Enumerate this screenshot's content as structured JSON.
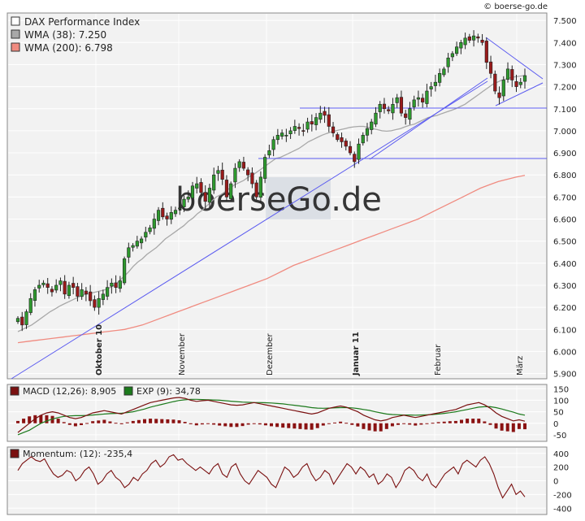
{
  "source": "© boerse-go.de",
  "watermark": "boerseGo.de",
  "colors": {
    "panel_bg": "#f2f2f2",
    "grid": "#ffffff",
    "candle_up": "#2e9a2e",
    "candle_down": "#9a1a1a",
    "wma38": "#a8a8a8",
    "wma200": "#f08b80",
    "trendline": "#5a5af0",
    "macd": "#7a1010",
    "signal": "#1c7a1c",
    "histogram": "#8a1212",
    "momentum": "#7a1010"
  },
  "chart_data": [
    {
      "type": "candlestick",
      "legend": [
        {
          "label": "DAX Performance Index",
          "swatch": "#ffffff"
        },
        {
          "label": "WMA (38): 7.250",
          "swatch": "#a8a8a8"
        },
        {
          "label": "WMA (200): 6.798",
          "swatch": "#f08b80"
        }
      ],
      "x_labels": [
        "Oktober 10",
        "November",
        "Dezember",
        "Januar 11",
        "Februar",
        "März"
      ],
      "y_ticks": [
        "5.900",
        "6.000",
        "6.100",
        "6.200",
        "6.300",
        "6.400",
        "6.500",
        "6.600",
        "6.700",
        "6.800",
        "6.900",
        "7.000",
        "7.100",
        "7.200",
        "7.300",
        "7.400",
        "7.500"
      ],
      "ylim": [
        5880,
        7530
      ],
      "grid": true,
      "closes": [
        6150,
        6120,
        6180,
        6240,
        6280,
        6300,
        6310,
        6290,
        6270,
        6300,
        6320,
        6260,
        6300,
        6290,
        6250,
        6280,
        6260,
        6230,
        6200,
        6240,
        6260,
        6290,
        6310,
        6290,
        6320,
        6420,
        6470,
        6480,
        6500,
        6510,
        6540,
        6560,
        6600,
        6640,
        6610,
        6600,
        6630,
        6640,
        6650,
        6690,
        6700,
        6750,
        6760,
        6720,
        6680,
        6740,
        6800,
        6820,
        6780,
        6700,
        6760,
        6830,
        6860,
        6830,
        6800,
        6760,
        6700,
        6790,
        6880,
        6910,
        6960,
        6980,
        6990,
        6980,
        7000,
        7020,
        7010,
        7000,
        7040,
        7030,
        7060,
        7080,
        7070,
        7020,
        6990,
        6960,
        6950,
        6930,
        6900,
        6860,
        6940,
        6980,
        7010,
        7040,
        7080,
        7120,
        7100,
        7090,
        7120,
        7150,
        7080,
        7060,
        7100,
        7140,
        7150,
        7130,
        7180,
        7200,
        7220,
        7260,
        7280,
        7330,
        7350,
        7380,
        7400,
        7420,
        7410,
        7430,
        7420,
        7400,
        7310,
        7260,
        7180,
        7150,
        7230,
        7280,
        7230,
        7200,
        7220,
        7250
      ],
      "wma38": [
        6090,
        6100,
        6110,
        6120,
        6135,
        6150,
        6165,
        6180,
        6192,
        6205,
        6215,
        6225,
        6235,
        6245,
        6255,
        6260,
        6265,
        6270,
        6275,
        6280,
        6290,
        6300,
        6320,
        6340,
        6360,
        6385,
        6405,
        6420,
        6440,
        6455,
        6470,
        6490,
        6510,
        6525,
        6540,
        6555,
        6570,
        6590,
        6605,
        6625,
        6640,
        6660,
        6680,
        6700,
        6710,
        6725,
        6740,
        6755,
        6765,
        6775,
        6790,
        6800,
        6815,
        6830,
        6845,
        6860,
        6875,
        6880,
        6890,
        6900,
        6910,
        6920,
        6935,
        6950,
        6960,
        6970,
        6980,
        6988,
        6995,
        7000,
        7005,
        7010,
        7015,
        7018,
        7020,
        7020,
        7015,
        7010,
        7005,
        7000,
        6998,
        7000,
        7005,
        7010,
        7018,
        7025,
        7030,
        7040,
        7050,
        7060,
        7065,
        7070,
        7078,
        7085,
        7092,
        7100,
        7110,
        7120,
        7135,
        7150,
        7165,
        7180,
        7195,
        7210,
        7220,
        7230,
        7235,
        7242,
        7245,
        7248,
        7250
      ],
      "wma200": [
        6040,
        6045,
        6050,
        6055,
        6060,
        6065,
        6070,
        6075,
        6080,
        6085,
        6090,
        6095,
        6100,
        6110,
        6120,
        6135,
        6150,
        6165,
        6180,
        6195,
        6210,
        6225,
        6240,
        6255,
        6270,
        6285,
        6300,
        6315,
        6330,
        6350,
        6370,
        6390,
        6405,
        6420,
        6435,
        6450,
        6465,
        6480,
        6495,
        6510,
        6525,
        6540,
        6555,
        6570,
        6585,
        6600,
        6620,
        6640,
        6660,
        6680,
        6700,
        6720,
        6740,
        6755,
        6770,
        6780,
        6790,
        6798
      ]
    },
    {
      "type": "line",
      "legend": [
        {
          "label": "MACD (12,26): 8,905",
          "swatch": "#7a1010"
        },
        {
          "label": "EXP (9): 34,78",
          "swatch": "#1c7a1c"
        }
      ],
      "y_ticks": [
        "150",
        "100",
        "50",
        "0",
        "-50"
      ],
      "ylim": [
        -75,
        165
      ],
      "macd": [
        -40,
        -20,
        0,
        20,
        35,
        45,
        50,
        45,
        35,
        25,
        20,
        25,
        35,
        45,
        50,
        55,
        50,
        45,
        40,
        50,
        60,
        70,
        80,
        90,
        95,
        100,
        105,
        110,
        112,
        108,
        100,
        95,
        98,
        100,
        95,
        90,
        85,
        80,
        78,
        80,
        85,
        90,
        85,
        80,
        75,
        70,
        65,
        60,
        55,
        50,
        45,
        40,
        45,
        55,
        65,
        70,
        75,
        70,
        60,
        50,
        35,
        25,
        15,
        10,
        15,
        25,
        30,
        35,
        30,
        25,
        30,
        35,
        40,
        45,
        50,
        55,
        60,
        70,
        80,
        85,
        90,
        80,
        65,
        45,
        30,
        20,
        10,
        15,
        9
      ],
      "signal": [
        -50,
        -40,
        -30,
        -15,
        0,
        10,
        18,
        25,
        30,
        32,
        33,
        33,
        34,
        36,
        38,
        40,
        42,
        43,
        44,
        46,
        50,
        56,
        62,
        70,
        76,
        82,
        88,
        94,
        99,
        102,
        104,
        104,
        103,
        102,
        101,
        100,
        98,
        96,
        94,
        92,
        91,
        90,
        90,
        89,
        88,
        86,
        84,
        81,
        78,
        75,
        72,
        68,
        66,
        65,
        66,
        67,
        68,
        68,
        67,
        64,
        60,
        56,
        50,
        45,
        40,
        38,
        37,
        36,
        36,
        35,
        36,
        37,
        38,
        40,
        43,
        46,
        50,
        55,
        60,
        65,
        70,
        72,
        72,
        68,
        62,
        55,
        48,
        40,
        35
      ]
    },
    {
      "type": "line",
      "legend": [
        {
          "label": "Momentum: (12): -235,4",
          "swatch": "#7a1010"
        }
      ],
      "y_ticks": [
        "400",
        "200",
        "0",
        "-200",
        "-400"
      ],
      "ylim": [
        -480,
        480
      ],
      "values": [
        150,
        250,
        300,
        350,
        300,
        280,
        320,
        200,
        100,
        50,
        80,
        150,
        120,
        0,
        50,
        150,
        200,
        100,
        -50,
        0,
        100,
        150,
        50,
        0,
        -100,
        -50,
        50,
        0,
        100,
        150,
        250,
        300,
        200,
        250,
        350,
        380,
        300,
        320,
        250,
        200,
        150,
        200,
        150,
        100,
        200,
        250,
        100,
        50,
        200,
        250,
        100,
        0,
        -50,
        50,
        150,
        100,
        50,
        -50,
        -100,
        50,
        200,
        150,
        50,
        100,
        200,
        250,
        100,
        0,
        50,
        150,
        100,
        -50,
        50,
        150,
        250,
        200,
        100,
        200,
        150,
        50,
        100,
        -50,
        0,
        100,
        50,
        -100,
        0,
        150,
        200,
        150,
        50,
        0,
        100,
        -50,
        -100,
        0,
        100,
        150,
        200,
        100,
        250,
        300,
        250,
        200,
        300,
        350,
        250,
        100,
        -100,
        -250,
        -150,
        -50,
        -200,
        -150,
        -235
      ]
    }
  ]
}
